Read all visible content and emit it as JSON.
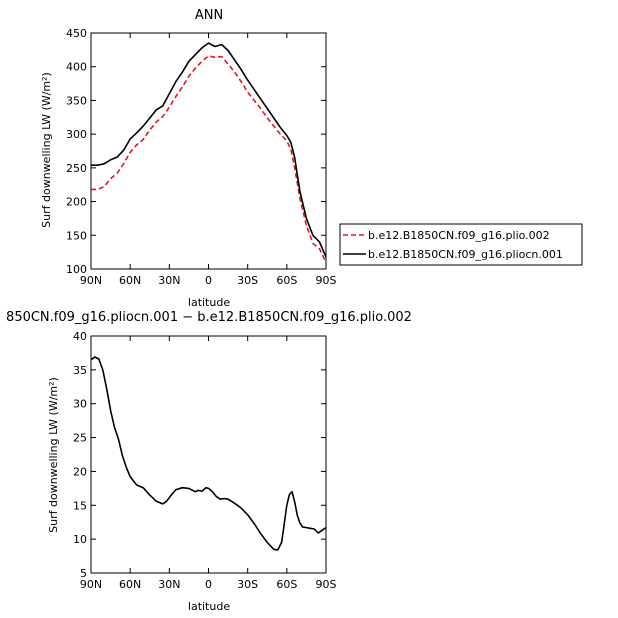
{
  "chart_data": [
    {
      "type": "line",
      "title": "ANN",
      "xlabel": "latitude",
      "ylabel": "Surf downwelling LW (W/m²)",
      "xlim": [
        90,
        -90
      ],
      "ylim": [
        100,
        450
      ],
      "x_ticks": [
        90,
        60,
        30,
        0,
        -30,
        -60,
        -90
      ],
      "x_tick_labels": [
        "90N",
        "60N",
        "30N",
        "0",
        "30S",
        "60S",
        "90S"
      ],
      "y_ticks": [
        100,
        150,
        200,
        250,
        300,
        350,
        400,
        450
      ],
      "y_tick_labels": [
        "100",
        "150",
        "200",
        "250",
        "300",
        "350",
        "400",
        "450"
      ],
      "legend_position": "right",
      "series": [
        {
          "name": "b.e12.B1850CN.f09_g16.plio.002",
          "color": "#e8141d",
          "dash": "dashed",
          "x": [
            90,
            85,
            80,
            75,
            70,
            65,
            60,
            55,
            50,
            45,
            40,
            35,
            30,
            25,
            20,
            15,
            10,
            5,
            0,
            -5,
            -10,
            -15,
            -20,
            -25,
            -30,
            -35,
            -40,
            -45,
            -50,
            -55,
            -60,
            -63,
            -66,
            -70,
            -75,
            -80,
            -85,
            -90
          ],
          "y": [
            218,
            218,
            222,
            234,
            242,
            256,
            273,
            284,
            292,
            306,
            318,
            326,
            340,
            356,
            370,
            386,
            398,
            408,
            416,
            414,
            415,
            404,
            392,
            378,
            362,
            350,
            338,
            324,
            312,
            300,
            290,
            278,
            250,
            205,
            165,
            138,
            130,
            110
          ]
        },
        {
          "name": "b.e12.B1850CN.f09_g16.pliocn.001",
          "color": "#000000",
          "dash": "solid",
          "x": [
            90,
            85,
            80,
            75,
            70,
            65,
            60,
            55,
            50,
            45,
            40,
            35,
            30,
            25,
            20,
            15,
            10,
            5,
            0,
            -5,
            -10,
            -15,
            -20,
            -25,
            -30,
            -35,
            -40,
            -45,
            -50,
            -55,
            -60,
            -63,
            -66,
            -70,
            -75,
            -80,
            -85,
            -90
          ],
          "y": [
            254,
            254,
            256,
            262,
            266,
            276,
            293,
            302,
            312,
            324,
            336,
            342,
            360,
            378,
            392,
            408,
            418,
            428,
            435,
            430,
            433,
            424,
            410,
            396,
            380,
            366,
            352,
            338,
            324,
            310,
            298,
            288,
            265,
            215,
            175,
            150,
            140,
            118
          ]
        }
      ]
    },
    {
      "type": "line",
      "title": "850CN.f09_g16.pliocn.001 − b.e12.B1850CN.f09_g16.plio.002",
      "xlabel": "latitude",
      "ylabel": "Surf downwelling LW (W/m²)",
      "xlim": [
        90,
        -90
      ],
      "ylim": [
        5,
        40
      ],
      "x_ticks": [
        90,
        60,
        30,
        0,
        -30,
        -60,
        -90
      ],
      "x_tick_labels": [
        "90N",
        "60N",
        "30N",
        "0",
        "30S",
        "60S",
        "90S"
      ],
      "y_ticks": [
        5,
        10,
        15,
        20,
        25,
        30,
        35,
        40
      ],
      "y_tick_labels": [
        "5",
        "10",
        "15",
        "20",
        "25",
        "30",
        "35",
        "40"
      ],
      "series": [
        {
          "color": "#000000",
          "dash": "solid",
          "x": [
            90,
            87,
            84,
            81,
            78,
            75,
            72,
            69,
            66,
            63,
            60,
            55,
            50,
            45,
            40,
            35,
            32,
            29,
            25,
            20,
            15,
            12,
            10,
            8,
            5,
            2,
            0,
            -3,
            -6,
            -9,
            -12,
            -15,
            -20,
            -25,
            -30,
            -35,
            -40,
            -45,
            -50,
            -53,
            -56,
            -58,
            -60,
            -62,
            -64,
            -66,
            -68,
            -70,
            -72,
            -75,
            -78,
            -81,
            -84,
            -87,
            -90
          ],
          "y": [
            36.5,
            36.9,
            36.6,
            35.0,
            32.2,
            29.0,
            26.5,
            24.8,
            22.4,
            20.6,
            19.2,
            18.0,
            17.6,
            16.5,
            15.6,
            15.2,
            15.6,
            16.4,
            17.3,
            17.6,
            17.5,
            17.2,
            17.0,
            17.2,
            17.1,
            17.6,
            17.5,
            17.0,
            16.3,
            15.9,
            16.0,
            15.9,
            15.3,
            14.6,
            13.6,
            12.3,
            10.8,
            9.5,
            8.5,
            8.4,
            9.5,
            12.2,
            15.0,
            16.6,
            17.0,
            15.5,
            13.5,
            12.4,
            11.8,
            11.7,
            11.6,
            11.5,
            10.9,
            11.3,
            11.7
          ]
        }
      ]
    }
  ]
}
